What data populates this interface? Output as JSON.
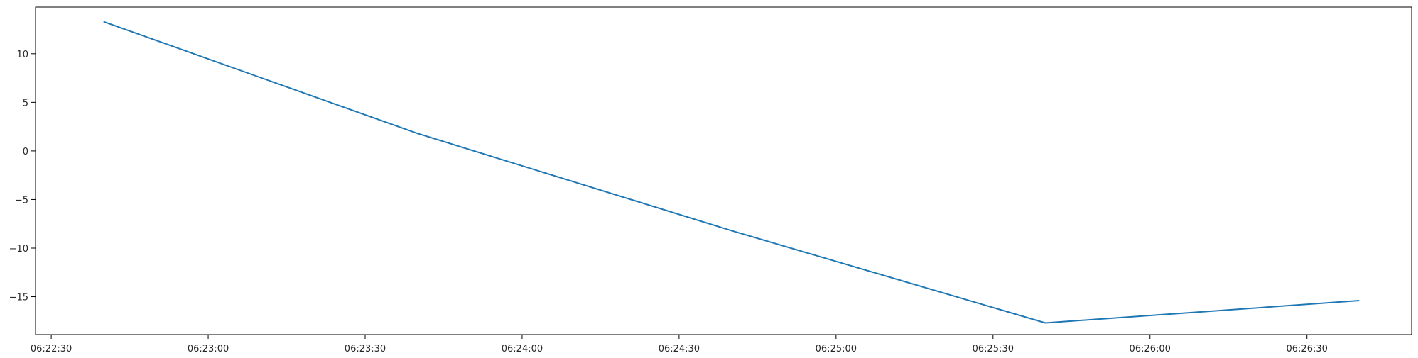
{
  "chart_data": {
    "type": "line",
    "title": "",
    "xlabel": "",
    "ylabel": "",
    "x_axis_type": "time",
    "x": [
      "06:22:40",
      "06:23:40",
      "06:24:40",
      "06:25:40",
      "06:26:40"
    ],
    "series": [
      {
        "color": "#1f77b4",
        "values": [
          13.3,
          1.8,
          -8.2,
          -17.7,
          -15.4
        ]
      }
    ],
    "xlim": [
      "06:22:27",
      "06:26:50"
    ],
    "ylim": [
      -18.9,
      14.8
    ],
    "x_ticks": [
      "06:22:30",
      "06:23:00",
      "06:23:30",
      "06:24:00",
      "06:24:30",
      "06:25:00",
      "06:25:30",
      "06:26:00",
      "06:26:30"
    ],
    "y_ticks": [
      10,
      5,
      0,
      -5,
      -10,
      -15
    ],
    "y_tick_labels": [
      "10",
      "5",
      "0",
      "−5",
      "−10",
      "−15"
    ],
    "grid": false,
    "legend": "none"
  }
}
